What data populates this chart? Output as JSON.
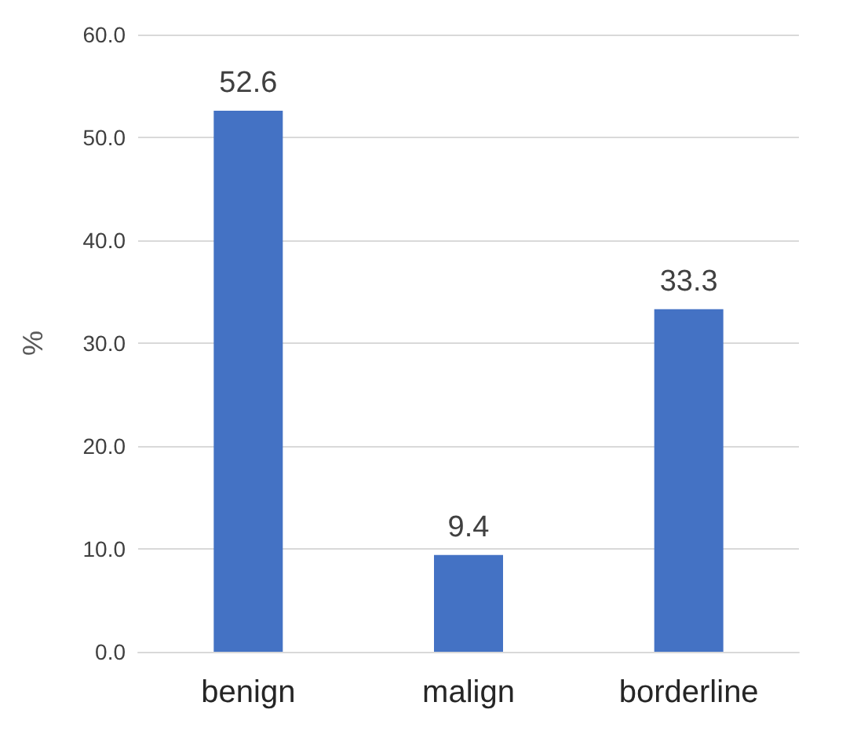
{
  "chart_data": {
    "type": "bar",
    "ylabel": "%",
    "categories": [
      "benign",
      "malign",
      "borderline"
    ],
    "values": [
      52.6,
      9.4,
      33.3
    ],
    "color": "#4472c4",
    "data_labels": true,
    "ylim": [
      0,
      60
    ],
    "yticks": [
      {
        "value": 0,
        "label": "0.0"
      },
      {
        "value": 10,
        "label": "10.0"
      },
      {
        "value": 20,
        "label": "20.0"
      },
      {
        "value": 30,
        "label": "30.0"
      },
      {
        "value": 40,
        "label": "40.0"
      },
      {
        "value": 50,
        "label": "50.0"
      },
      {
        "value": 60,
        "label": "60.0"
      }
    ],
    "grid": "y"
  }
}
